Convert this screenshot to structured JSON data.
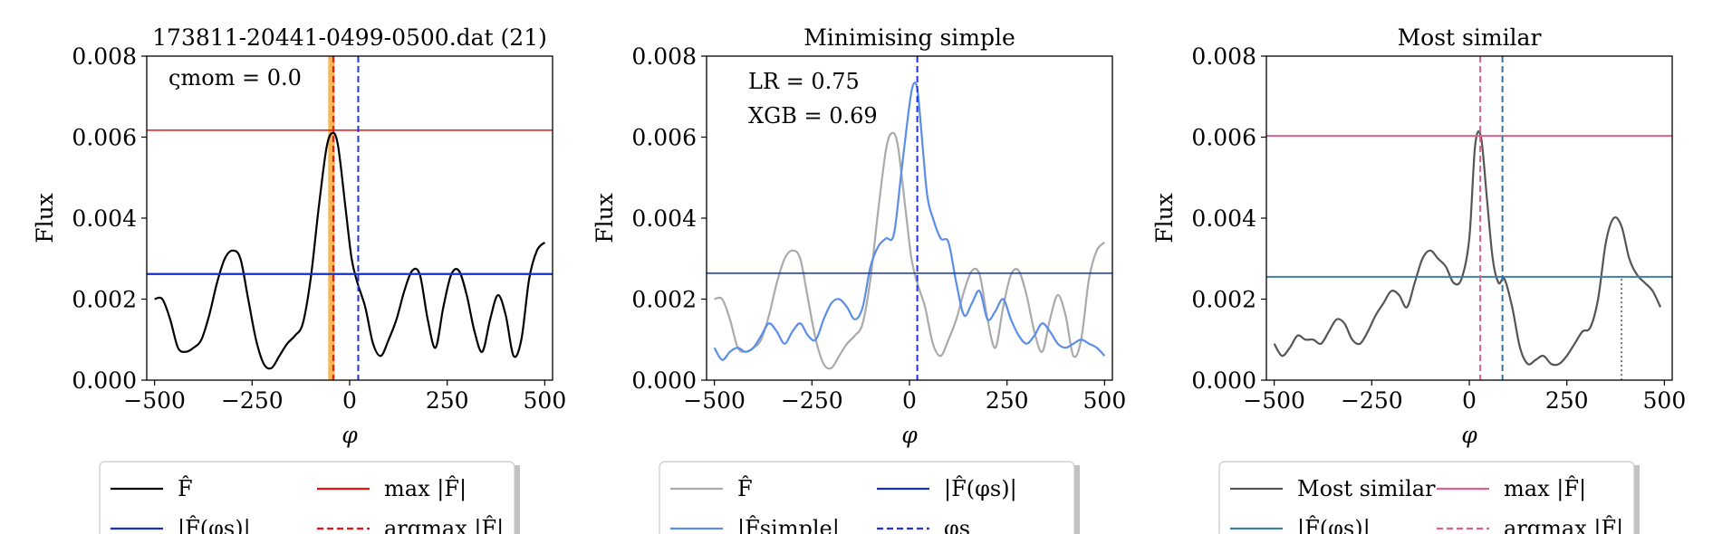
{
  "figure": {
    "ylabel": "Flux",
    "xlabel": "φ"
  },
  "chart_data": [
    {
      "type": "line",
      "title": "173811-20441-0499-0500.dat (21)",
      "xlabel": "φ",
      "ylabel": "Flux",
      "xlim": [
        -520,
        520
      ],
      "ylim": [
        0,
        0.008
      ],
      "xticks": [
        -500,
        -250,
        0,
        250,
        500
      ],
      "xtick_labels": [
        "−500",
        "−250",
        "0",
        "250",
        "500"
      ],
      "yticks": [
        0,
        0.002,
        0.004,
        0.006,
        0.008
      ],
      "ytick_labels": [
        "0.000",
        "0.002",
        "0.004",
        "0.006",
        "0.008"
      ],
      "annotation": "ςmom = 0.0",
      "series": [
        {
          "name": "F̂",
          "color": "#000000",
          "x": [
            -500,
            -480,
            -460,
            -440,
            -420,
            -400,
            -380,
            -360,
            -340,
            -320,
            -300,
            -280,
            -260,
            -240,
            -220,
            -200,
            -180,
            -160,
            -140,
            -120,
            -100,
            -80,
            -60,
            -45,
            -30,
            -10,
            5,
            20,
            40,
            60,
            80,
            100,
            120,
            140,
            160,
            180,
            200,
            220,
            240,
            260,
            280,
            300,
            320,
            340,
            360,
            380,
            400,
            420,
            440,
            460,
            480,
            500
          ],
          "y": [
            0.002,
            0.002,
            0.0015,
            0.0008,
            0.0007,
            0.0008,
            0.001,
            0.0016,
            0.0024,
            0.003,
            0.0032,
            0.003,
            0.002,
            0.001,
            0.0004,
            0.0003,
            0.0006,
            0.0009,
            0.0011,
            0.0014,
            0.0025,
            0.0042,
            0.0057,
            0.0061,
            0.0058,
            0.0042,
            0.003,
            0.0024,
            0.0018,
            0.0009,
            0.0006,
            0.001,
            0.0015,
            0.0022,
            0.0027,
            0.0026,
            0.0015,
            0.0008,
            0.0018,
            0.0026,
            0.0027,
            0.0021,
            0.0012,
            0.0007,
            0.0015,
            0.0021,
            0.0016,
            0.0006,
            0.001,
            0.0025,
            0.0032,
            0.0034
          ]
        }
      ],
      "hlines": [
        {
          "y": 0.00617,
          "color": "#ee1111",
          "style": "solid",
          "width": 1.5
        },
        {
          "y": 0.00262,
          "color": "#1530c8",
          "style": "solid",
          "width": 2.2
        }
      ],
      "vlines": [
        {
          "x": -42,
          "color": "#ee1111",
          "style": "dashed"
        },
        {
          "x": 22,
          "color": "#2233dd",
          "style": "dashed"
        }
      ],
      "shaded": {
        "x0": -55,
        "x1": -38,
        "color": "#f4a020"
      },
      "legend": [
        {
          "label": "F̂",
          "color": "#000000",
          "style": "solid"
        },
        {
          "label": "max |F̂|",
          "color": "#ee1111",
          "style": "solid"
        },
        {
          "label": "|F̂(φs)|",
          "color": "#1530c8",
          "style": "solid"
        },
        {
          "label": "argmax |F̂|",
          "color": "#ee1111",
          "style": "dashed"
        }
      ]
    },
    {
      "type": "line",
      "title": "Minimising simple",
      "xlabel": "φ",
      "ylabel": "Flux",
      "xlim": [
        -520,
        520
      ],
      "ylim": [
        0,
        0.008
      ],
      "xticks": [
        -500,
        -250,
        0,
        250,
        500
      ],
      "xtick_labels": [
        "−500",
        "−250",
        "0",
        "250",
        "500"
      ],
      "yticks": [
        0,
        0.002,
        0.004,
        0.006,
        0.008
      ],
      "ytick_labels": [
        "0.000",
        "0.002",
        "0.004",
        "0.006",
        "0.008"
      ],
      "annotation_lines": [
        "LR = 0.75",
        "XGB = 0.69"
      ],
      "series": [
        {
          "name": "F̂",
          "color": "#aaaaaa",
          "x": [
            -500,
            -480,
            -460,
            -440,
            -420,
            -400,
            -380,
            -360,
            -340,
            -320,
            -300,
            -280,
            -260,
            -240,
            -220,
            -200,
            -180,
            -160,
            -140,
            -120,
            -100,
            -80,
            -60,
            -45,
            -30,
            -10,
            5,
            20,
            40,
            60,
            80,
            100,
            120,
            140,
            160,
            180,
            200,
            220,
            240,
            260,
            280,
            300,
            320,
            340,
            360,
            380,
            400,
            420,
            440,
            460,
            480,
            500
          ],
          "y": [
            0.002,
            0.002,
            0.0015,
            0.0008,
            0.0007,
            0.0008,
            0.001,
            0.0016,
            0.0024,
            0.003,
            0.0032,
            0.003,
            0.002,
            0.001,
            0.0004,
            0.0003,
            0.0006,
            0.0009,
            0.0011,
            0.0014,
            0.0025,
            0.0042,
            0.0057,
            0.0061,
            0.0058,
            0.0042,
            0.003,
            0.0024,
            0.0018,
            0.0009,
            0.0006,
            0.001,
            0.0015,
            0.0022,
            0.0027,
            0.0026,
            0.0015,
            0.0008,
            0.0018,
            0.0026,
            0.0027,
            0.0021,
            0.0012,
            0.0007,
            0.0015,
            0.0021,
            0.0016,
            0.0006,
            0.001,
            0.0025,
            0.0032,
            0.0034
          ]
        },
        {
          "name": "|F̂simple|",
          "color": "#5b8ee6",
          "x": [
            -500,
            -480,
            -460,
            -440,
            -420,
            -400,
            -380,
            -360,
            -340,
            -320,
            -300,
            -280,
            -260,
            -240,
            -220,
            -200,
            -180,
            -160,
            -140,
            -120,
            -100,
            -80,
            -60,
            -40,
            -20,
            0,
            10,
            20,
            30,
            45,
            60,
            80,
            100,
            120,
            140,
            160,
            180,
            200,
            220,
            240,
            260,
            280,
            300,
            320,
            340,
            360,
            380,
            400,
            420,
            440,
            460,
            480,
            500
          ],
          "y": [
            0.0008,
            0.0005,
            0.0007,
            0.0008,
            0.0007,
            0.0008,
            0.0011,
            0.0014,
            0.0012,
            0.0009,
            0.0012,
            0.0014,
            0.0011,
            0.001,
            0.0015,
            0.0019,
            0.002,
            0.0018,
            0.0015,
            0.0018,
            0.0028,
            0.0033,
            0.0035,
            0.0036,
            0.0052,
            0.0068,
            0.0073,
            0.0072,
            0.0062,
            0.0046,
            0.004,
            0.0035,
            0.0034,
            0.0024,
            0.0016,
            0.0019,
            0.0022,
            0.0015,
            0.0017,
            0.002,
            0.0015,
            0.0011,
            0.0009,
            0.0011,
            0.0014,
            0.0012,
            0.0009,
            0.0008,
            0.0009,
            0.001,
            0.0009,
            0.0008,
            0.0006
          ]
        }
      ],
      "hlines": [
        {
          "y": 0.00264,
          "color": "#1530c8",
          "style": "solid",
          "width": 1.5
        }
      ],
      "vlines": [
        {
          "x": 20,
          "color": "#2233dd",
          "style": "dashed"
        }
      ],
      "legend": [
        {
          "label": "F̂",
          "color": "#aaaaaa",
          "style": "solid"
        },
        {
          "label": "|F̂(φs)|",
          "color": "#1530c8",
          "style": "solid"
        },
        {
          "label": "|F̂simple|",
          "color": "#5b8ee6",
          "style": "solid"
        },
        {
          "label": "φs",
          "color": "#2233dd",
          "style": "dashed"
        }
      ]
    },
    {
      "type": "line",
      "title": "Most similar",
      "xlabel": "φ",
      "ylabel": "Flux",
      "xlim": [
        -520,
        520
      ],
      "ylim": [
        0,
        0.008
      ],
      "xticks": [
        -500,
        -250,
        0,
        250,
        500
      ],
      "xtick_labels": [
        "−500",
        "−250",
        "0",
        "250",
        "500"
      ],
      "yticks": [
        0,
        0.002,
        0.004,
        0.006,
        0.008
      ],
      "ytick_labels": [
        "0.000",
        "0.002",
        "0.004",
        "0.006",
        "0.008"
      ],
      "series": [
        {
          "name": "Most similar",
          "color": "#555555",
          "x": [
            -500,
            -480,
            -460,
            -440,
            -420,
            -400,
            -380,
            -360,
            -340,
            -320,
            -300,
            -280,
            -260,
            -240,
            -220,
            -200,
            -180,
            -160,
            -140,
            -120,
            -100,
            -80,
            -60,
            -40,
            -20,
            0,
            15,
            30,
            45,
            60,
            75,
            90,
            110,
            130,
            150,
            170,
            190,
            210,
            230,
            250,
            270,
            290,
            310,
            330,
            350,
            370,
            390,
            410,
            430,
            450,
            470,
            490
          ],
          "y": [
            0.0009,
            0.0006,
            0.0008,
            0.0011,
            0.001,
            0.001,
            0.0009,
            0.0012,
            0.0015,
            0.0014,
            0.001,
            0.0009,
            0.0012,
            0.0016,
            0.0019,
            0.0022,
            0.0021,
            0.0018,
            0.0024,
            0.003,
            0.0032,
            0.003,
            0.0028,
            0.0024,
            0.0025,
            0.0035,
            0.0058,
            0.006,
            0.0045,
            0.003,
            0.0024,
            0.0025,
            0.0018,
            0.0008,
            0.0004,
            0.0005,
            0.0006,
            0.0004,
            0.0004,
            0.0006,
            0.0009,
            0.0012,
            0.0013,
            0.002,
            0.0034,
            0.004,
            0.0038,
            0.003,
            0.0026,
            0.0024,
            0.0022,
            0.0018
          ]
        }
      ],
      "hlines": [
        {
          "y": 0.00603,
          "color": "#e0608c",
          "style": "solid",
          "width": 2
        },
        {
          "y": 0.00255,
          "color": "#3f7fa0",
          "style": "solid",
          "width": 2
        }
      ],
      "vlines": [
        {
          "x": 28,
          "color": "#e0608c",
          "style": "dashed"
        },
        {
          "x": 85,
          "color": "#3a6f9a",
          "style": "dashed"
        },
        {
          "x": 390,
          "x_to": null,
          "color": "#777777",
          "style": "dotted",
          "ymax": 0.0025
        }
      ],
      "legend": [
        {
          "label": "Most similar",
          "color": "#555555",
          "style": "solid"
        },
        {
          "label": "max |F̂|",
          "color": "#e0608c",
          "style": "solid"
        },
        {
          "label": "|F̂(φs)|",
          "color": "#3f7fa0",
          "style": "solid"
        },
        {
          "label": "argmax |F̂|",
          "color": "#e0608c",
          "style": "dashed"
        }
      ]
    }
  ]
}
